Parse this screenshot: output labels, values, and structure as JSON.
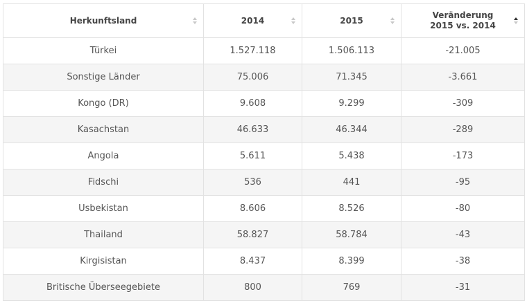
{
  "table": {
    "columns": [
      {
        "label": "Herkunftsland",
        "sort": "none"
      },
      {
        "label": "2014",
        "sort": "none"
      },
      {
        "label": "2015",
        "sort": "none"
      },
      {
        "label_line1": "Veränderung",
        "label_line2": "2015 vs. 2014",
        "sort": "descending"
      }
    ],
    "rows": [
      {
        "country": "Türkei",
        "y2014": "1.527.118",
        "y2015": "1.506.113",
        "change": "-21.005"
      },
      {
        "country": "Sonstige Länder",
        "y2014": "75.006",
        "y2015": "71.345",
        "change": "-3.661"
      },
      {
        "country": "Kongo (DR)",
        "y2014": "9.608",
        "y2015": "9.299",
        "change": "-309"
      },
      {
        "country": "Kasachstan",
        "y2014": "46.633",
        "y2015": "46.344",
        "change": "-289"
      },
      {
        "country": "Angola",
        "y2014": "5.611",
        "y2015": "5.438",
        "change": "-173"
      },
      {
        "country": "Fidschi",
        "y2014": "536",
        "y2015": "441",
        "change": "-95"
      },
      {
        "country": "Usbekistan",
        "y2014": "8.606",
        "y2015": "8.526",
        "change": "-80"
      },
      {
        "country": "Thailand",
        "y2014": "58.827",
        "y2015": "58.784",
        "change": "-43"
      },
      {
        "country": "Kirgisistan",
        "y2014": "8.437",
        "y2015": "8.399",
        "change": "-38"
      },
      {
        "country": "Britische Überseegebiete",
        "y2014": "800",
        "y2015": "769",
        "change": "-31"
      }
    ]
  },
  "colors": {
    "border": "#e2e2e2",
    "stripe": "#f5f5f5",
    "text": "#555555",
    "sort_inactive": "#c8c8c8",
    "sort_active": "#333333"
  },
  "icons": [
    "sort-icon",
    "sort-descending-icon"
  ]
}
